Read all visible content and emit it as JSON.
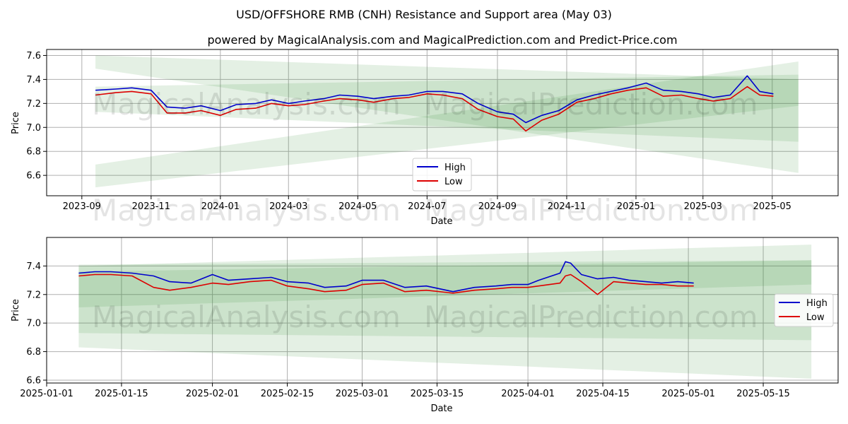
{
  "title": "USD/OFFSHORE RMB (CNH) Resistance and Support area (May 03)",
  "subtitle": "powered by MagicalAnalysis.com and MagicalPrediction.com and Predict-Price.com",
  "watermarks": [
    "MagicalAnalysis.com",
    "MagicalPrediction.com"
  ],
  "colors": {
    "high": "#0000cc",
    "low": "#dd0000",
    "band_fill": "#2e8b2e",
    "grid": "#b0b0b0"
  },
  "chart_data": [
    {
      "type": "line",
      "name": "top",
      "xlabel": "Date",
      "ylabel": "Price",
      "x_ticks": [
        "2023-09",
        "2023-11",
        "2024-01",
        "2024-03",
        "2024-05",
        "2024-07",
        "2024-09",
        "2024-11",
        "2025-01",
        "2025-03",
        "2025-05"
      ],
      "y_ticks": [
        "6.6",
        "6.8",
        "7.0",
        "7.2",
        "7.4",
        "7.6"
      ],
      "ylim": [
        6.43,
        7.65
      ],
      "xlim": [
        "2023-08-01",
        "2025-06-28"
      ],
      "grid": true,
      "legend": {
        "position": "bottom-center",
        "entries": [
          "High",
          "Low"
        ]
      },
      "series": [
        {
          "name": "High",
          "x": [
            "2023-09-13",
            "2023-10-01",
            "2023-10-15",
            "2023-11-01",
            "2023-11-15",
            "2023-12-01",
            "2023-12-15",
            "2024-01-01",
            "2024-01-15",
            "2024-02-01",
            "2024-02-15",
            "2024-03-01",
            "2024-03-15",
            "2024-04-01",
            "2024-04-15",
            "2024-05-01",
            "2024-05-15",
            "2024-06-01",
            "2024-06-15",
            "2024-07-01",
            "2024-07-15",
            "2024-08-01",
            "2024-08-15",
            "2024-09-01",
            "2024-09-15",
            "2024-09-26",
            "2024-10-10",
            "2024-10-25",
            "2024-11-10",
            "2024-11-25",
            "2024-12-10",
            "2024-12-25",
            "2025-01-10",
            "2025-01-25",
            "2025-02-10",
            "2025-02-25",
            "2025-03-10",
            "2025-03-25",
            "2025-04-09",
            "2025-04-20",
            "2025-05-02"
          ],
          "values": [
            7.31,
            7.32,
            7.33,
            7.31,
            7.17,
            7.16,
            7.18,
            7.14,
            7.19,
            7.2,
            7.23,
            7.2,
            7.22,
            7.24,
            7.27,
            7.26,
            7.24,
            7.26,
            7.27,
            7.3,
            7.3,
            7.28,
            7.2,
            7.13,
            7.11,
            7.04,
            7.1,
            7.14,
            7.23,
            7.27,
            7.3,
            7.33,
            7.37,
            7.31,
            7.3,
            7.28,
            7.25,
            7.27,
            7.43,
            7.3,
            7.28
          ]
        },
        {
          "name": "Low",
          "x": [
            "2023-09-13",
            "2023-10-01",
            "2023-10-15",
            "2023-11-01",
            "2023-11-15",
            "2023-12-01",
            "2023-12-15",
            "2024-01-01",
            "2024-01-15",
            "2024-02-01",
            "2024-02-15",
            "2024-03-01",
            "2024-03-15",
            "2024-04-01",
            "2024-04-15",
            "2024-05-01",
            "2024-05-15",
            "2024-06-01",
            "2024-06-15",
            "2024-07-01",
            "2024-07-15",
            "2024-08-01",
            "2024-08-15",
            "2024-09-01",
            "2024-09-15",
            "2024-09-26",
            "2024-10-10",
            "2024-10-25",
            "2024-11-10",
            "2024-11-25",
            "2024-12-10",
            "2024-12-25",
            "2025-01-10",
            "2025-01-25",
            "2025-02-10",
            "2025-02-25",
            "2025-03-10",
            "2025-03-25",
            "2025-04-09",
            "2025-04-20",
            "2025-05-02"
          ],
          "values": [
            7.27,
            7.29,
            7.3,
            7.28,
            7.12,
            7.12,
            7.14,
            7.1,
            7.15,
            7.16,
            7.2,
            7.18,
            7.19,
            7.22,
            7.24,
            7.23,
            7.21,
            7.24,
            7.25,
            7.28,
            7.27,
            7.24,
            7.15,
            7.09,
            7.07,
            6.97,
            7.06,
            7.11,
            7.21,
            7.24,
            7.28,
            7.31,
            7.33,
            7.26,
            7.27,
            7.24,
            7.22,
            7.24,
            7.34,
            7.27,
            7.26
          ]
        }
      ],
      "bands": [
        {
          "x": [
            "2023-09-13",
            "2025-05-24"
          ],
          "upper": [
            7.6,
            7.4
          ],
          "lower": [
            7.49,
            6.62
          ]
        },
        {
          "x": [
            "2023-09-13",
            "2025-05-24"
          ],
          "upper": [
            6.69,
            7.55
          ],
          "lower": [
            6.5,
            7.18
          ]
        },
        {
          "x": [
            "2023-09-13",
            "2025-05-24"
          ],
          "upper": [
            7.34,
            7.44
          ],
          "lower": [
            7.13,
            6.88
          ]
        }
      ]
    },
    {
      "type": "line",
      "name": "bottom",
      "xlabel": "Date",
      "ylabel": "Price",
      "x_ticks": [
        "2025-01-01",
        "2025-01-15",
        "2025-02-01",
        "2025-02-15",
        "2025-03-01",
        "2025-03-15",
        "2025-04-01",
        "2025-04-15",
        "2025-05-01",
        "2025-05-15"
      ],
      "y_ticks": [
        "6.6",
        "6.8",
        "7.0",
        "7.2",
        "7.4"
      ],
      "ylim": [
        6.58,
        7.6
      ],
      "xlim": [
        "2025-01-01",
        "2025-05-29"
      ],
      "grid": true,
      "legend": {
        "position": "center-right",
        "entries": [
          "High",
          "Low"
        ]
      },
      "series": [
        {
          "name": "High",
          "x": [
            "2025-01-07",
            "2025-01-10",
            "2025-01-13",
            "2025-01-17",
            "2025-01-21",
            "2025-01-24",
            "2025-01-28",
            "2025-02-01",
            "2025-02-04",
            "2025-02-08",
            "2025-02-12",
            "2025-02-15",
            "2025-02-19",
            "2025-02-22",
            "2025-02-26",
            "2025-03-01",
            "2025-03-05",
            "2025-03-09",
            "2025-03-13",
            "2025-03-18",
            "2025-03-22",
            "2025-03-26",
            "2025-03-29",
            "2025-04-01",
            "2025-04-03",
            "2025-04-07",
            "2025-04-08",
            "2025-04-09",
            "2025-04-11",
            "2025-04-14",
            "2025-04-17",
            "2025-04-20",
            "2025-04-23",
            "2025-04-26",
            "2025-04-29",
            "2025-05-02"
          ],
          "values": [
            7.35,
            7.36,
            7.36,
            7.35,
            7.33,
            7.29,
            7.28,
            7.34,
            7.3,
            7.31,
            7.32,
            7.29,
            7.28,
            7.25,
            7.26,
            7.3,
            7.3,
            7.25,
            7.26,
            7.22,
            7.25,
            7.26,
            7.27,
            7.27,
            7.3,
            7.35,
            7.43,
            7.42,
            7.34,
            7.31,
            7.32,
            7.3,
            7.29,
            7.28,
            7.29,
            7.28
          ]
        },
        {
          "name": "Low",
          "x": [
            "2025-01-07",
            "2025-01-10",
            "2025-01-13",
            "2025-01-17",
            "2025-01-21",
            "2025-01-24",
            "2025-01-28",
            "2025-02-01",
            "2025-02-04",
            "2025-02-08",
            "2025-02-12",
            "2025-02-15",
            "2025-02-19",
            "2025-02-22",
            "2025-02-26",
            "2025-03-01",
            "2025-03-05",
            "2025-03-09",
            "2025-03-13",
            "2025-03-18",
            "2025-03-22",
            "2025-03-26",
            "2025-03-29",
            "2025-04-01",
            "2025-04-03",
            "2025-04-07",
            "2025-04-08",
            "2025-04-09",
            "2025-04-11",
            "2025-04-14",
            "2025-04-17",
            "2025-04-20",
            "2025-04-23",
            "2025-04-26",
            "2025-04-29",
            "2025-05-02"
          ],
          "values": [
            7.33,
            7.34,
            7.34,
            7.33,
            7.25,
            7.23,
            7.25,
            7.28,
            7.27,
            7.29,
            7.3,
            7.26,
            7.24,
            7.22,
            7.23,
            7.27,
            7.28,
            7.22,
            7.23,
            7.21,
            7.23,
            7.24,
            7.25,
            7.25,
            7.26,
            7.28,
            7.33,
            7.34,
            7.29,
            7.2,
            7.29,
            7.28,
            7.27,
            7.27,
            7.26,
            7.26
          ]
        }
      ],
      "bands": [
        {
          "x": [
            "2025-01-07",
            "2025-05-24"
          ],
          "upper": [
            7.4,
            7.55
          ],
          "lower": [
            6.83,
            6.61
          ]
        },
        {
          "x": [
            "2025-01-07",
            "2025-05-24"
          ],
          "upper": [
            7.41,
            7.44
          ],
          "lower": [
            6.93,
            6.88
          ]
        },
        {
          "x": [
            "2025-01-07",
            "2025-05-24"
          ],
          "upper": [
            7.36,
            7.44
          ],
          "lower": [
            7.11,
            7.27
          ]
        }
      ]
    }
  ]
}
